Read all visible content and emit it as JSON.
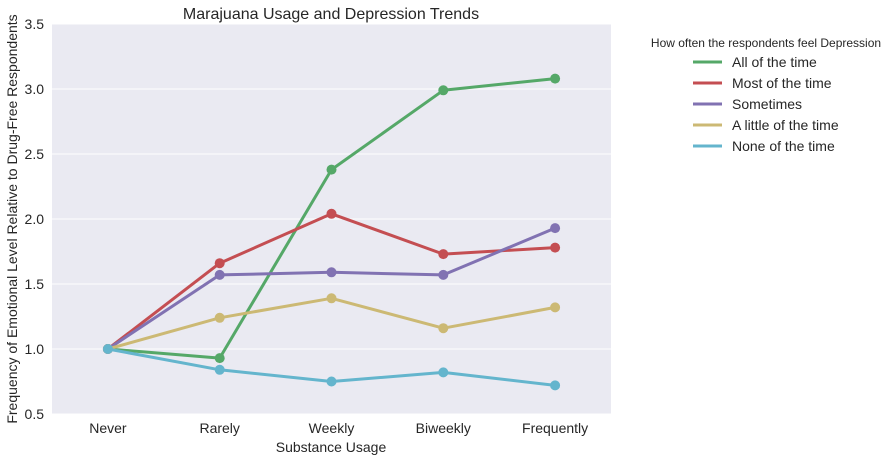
{
  "chart_data": {
    "type": "line",
    "title": "Marajuana Usage and Depression Trends",
    "xlabel": "Substance Usage",
    "ylabel": "Frequency of Emotional Level Relative to Drug-Free Respondents",
    "categories": [
      "Never",
      "Rarely",
      "Weekly",
      "Biweekly",
      "Frequently"
    ],
    "ylim": [
      0.5,
      3.5
    ],
    "yticks": [
      "0.5",
      "1.0",
      "1.5",
      "2.0",
      "2.5",
      "3.0",
      "3.5"
    ],
    "grid": true,
    "legend_title": "How often the respondents feel Depression",
    "legend_position": "outside-top-right",
    "series": [
      {
        "name": "All of the time",
        "color": "#55a868",
        "values": [
          1.0,
          0.93,
          2.38,
          2.99,
          3.08
        ]
      },
      {
        "name": "Most of the time",
        "color": "#c44e52",
        "values": [
          1.0,
          1.66,
          2.04,
          1.73,
          1.78
        ]
      },
      {
        "name": "Sometimes",
        "color": "#8172b2",
        "values": [
          1.0,
          1.57,
          1.59,
          1.57,
          1.93
        ]
      },
      {
        "name": "A little of the time",
        "color": "#ccb974",
        "values": [
          1.0,
          1.24,
          1.39,
          1.16,
          1.32
        ]
      },
      {
        "name": "None of the time",
        "color": "#64b5cd",
        "values": [
          1.0,
          0.84,
          0.75,
          0.82,
          0.72
        ]
      }
    ]
  }
}
